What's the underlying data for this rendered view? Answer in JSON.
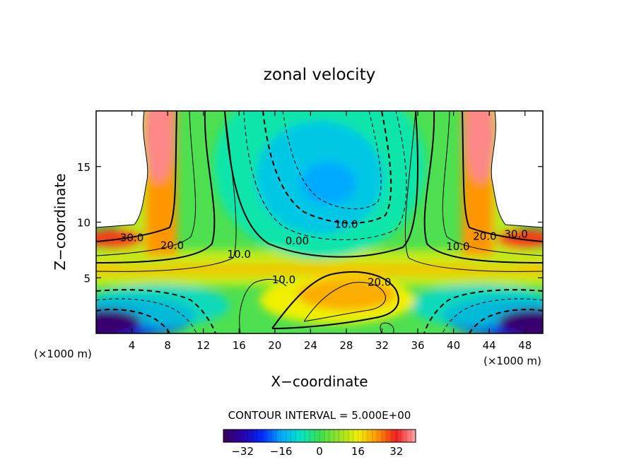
{
  "chart_data": {
    "type": "heatmap",
    "title": "zonal velocity",
    "xlabel": "X−coordinate",
    "ylabel": "Z−coordinate",
    "x_unit_left": "(×1000 m)",
    "x_unit_right": "(×1000 m)",
    "xlim": [
      0,
      50
    ],
    "ylim": [
      0,
      20
    ],
    "xticks": [
      4,
      8,
      12,
      16,
      20,
      24,
      28,
      32,
      36,
      40,
      44,
      48
    ],
    "yticks": [
      5,
      10,
      15
    ],
    "contour_labels": [
      {
        "text": "30.0",
        "x": 4,
        "y": 8.3
      },
      {
        "text": "20.0",
        "x": 8.5,
        "y": 7.6
      },
      {
        "text": "10.0",
        "x": 16,
        "y": 6.8
      },
      {
        "text": "0.00",
        "x": 22.5,
        "y": 8.0
      },
      {
        "text": "10.0",
        "x": 21,
        "y": 4.5
      },
      {
        "text": "10.0",
        "x": 28,
        "y": 9.5
      },
      {
        "text": "20.0",
        "x": 31.7,
        "y": 4.3
      },
      {
        "text": "10.0",
        "x": 40.5,
        "y": 7.5
      },
      {
        "text": "20.0",
        "x": 43.5,
        "y": 8.4
      },
      {
        "text": "30.0",
        "x": 47,
        "y": 8.6
      }
    ],
    "contour_interval_text": "CONTOUR INTERVAL = 5.000E+00",
    "colorbar": {
      "range": [
        -40,
        40
      ],
      "ticks": [
        "−32",
        "−16",
        "0",
        "16",
        "32"
      ],
      "tick_values": [
        -32,
        -16,
        0,
        16,
        32
      ]
    },
    "field_features": [
      {
        "kind": "jet",
        "value": 38,
        "x": 7,
        "y": 18
      },
      {
        "kind": "jet",
        "value": 38,
        "x": 43,
        "y": 18
      },
      {
        "kind": "jet",
        "value": 30,
        "x": 2,
        "y": 8.5
      },
      {
        "kind": "jet",
        "value": 30,
        "x": 48,
        "y": 8.5
      },
      {
        "kind": "minimum",
        "value": -38,
        "x": 1,
        "y": 1
      },
      {
        "kind": "minimum",
        "value": -38,
        "x": 49,
        "y": 1
      },
      {
        "kind": "minimum",
        "value": -16,
        "x": 26,
        "y": 13.5
      },
      {
        "kind": "maximum",
        "value": 22,
        "x": 28,
        "y": 3.5
      }
    ]
  }
}
